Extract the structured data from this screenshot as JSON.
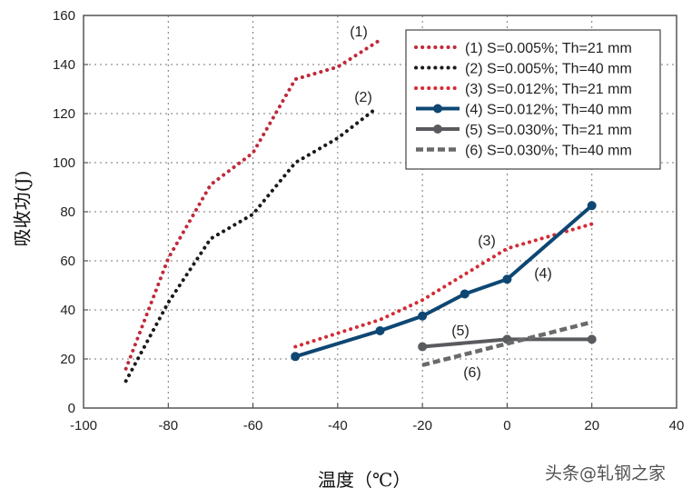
{
  "chart_data": {
    "type": "line",
    "title": "",
    "xlabel": "温度（℃）",
    "ylabel": "吸收功(J)",
    "xlim": [
      -100,
      40
    ],
    "ylim": [
      0,
      160
    ],
    "xticks": [
      -100,
      -80,
      -60,
      -40,
      -20,
      0,
      20,
      40
    ],
    "yticks": [
      0,
      20,
      40,
      60,
      80,
      100,
      120,
      140,
      160
    ],
    "grid": true,
    "legend_position": "top-right",
    "series": [
      {
        "name": "(1) S=0.005%; Th=21 mm",
        "label": "(1)",
        "color": "#c0293a",
        "style": "dotted",
        "markers": false,
        "x": [
          -90,
          -80,
          -70,
          -60,
          -50,
          -40,
          -30
        ],
        "y": [
          16,
          61,
          91,
          104,
          134,
          139,
          150
        ]
      },
      {
        "name": "(2) S=0.005%; Th=40 mm",
        "label": "(2)",
        "color": "#1a1a1a",
        "style": "dotted",
        "markers": false,
        "x": [
          -90,
          -80,
          -70,
          -60,
          -50,
          -40,
          -31
        ],
        "y": [
          11,
          43,
          69,
          79,
          100,
          110,
          122
        ]
      },
      {
        "name": "(3) S=0.012%; Th=21 mm",
        "label": "(3)",
        "color": "#d42a35",
        "style": "dotted",
        "markers": false,
        "x": [
          -50,
          -30,
          -20,
          0,
          20
        ],
        "y": [
          25,
          36,
          44,
          65,
          75
        ]
      },
      {
        "name": "(4) S=0.012%; Th=40 mm",
        "label": "(4)",
        "color": "#0e4773",
        "style": "solid",
        "markers": true,
        "x": [
          -50,
          -30,
          -20,
          -10,
          0,
          20
        ],
        "y": [
          21,
          31.5,
          37.5,
          46.5,
          52.5,
          82.5
        ]
      },
      {
        "name": "(5) S=0.030%; Th=21 mm",
        "label": "(5)",
        "color": "#5a5b5e",
        "style": "solid",
        "markers": true,
        "x": [
          -20,
          0,
          20
        ],
        "y": [
          25,
          28,
          28
        ]
      },
      {
        "name": "(6) S=0.030%; Th=40 mm",
        "label": "(6)",
        "color": "#6a6a6c",
        "style": "dashed",
        "markers": false,
        "x": [
          -20,
          20
        ],
        "y": [
          17.5,
          35
        ]
      }
    ]
  },
  "watermark": "头条@轧钢之家"
}
